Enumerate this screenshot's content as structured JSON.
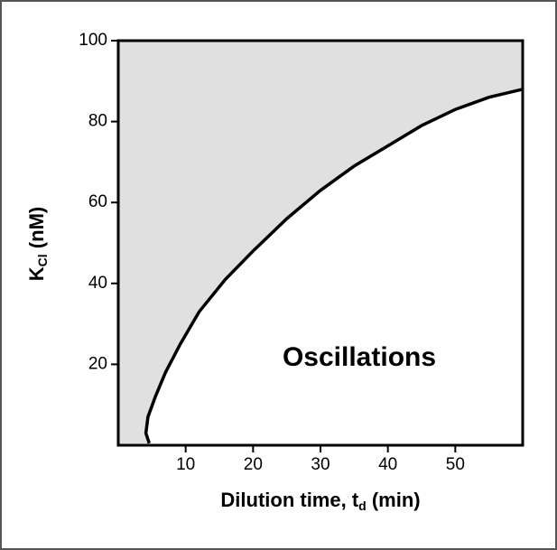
{
  "chart_data": {
    "type": "line",
    "xlabel": {
      "main": "Dilution time, t",
      "sub": "d",
      "tail": " (min)"
    },
    "ylabel": {
      "main": "K",
      "sub": "Cl",
      "tail": " (nM)"
    },
    "annotation": "Oscillations",
    "x": [
      4.6,
      4.1,
      4.4,
      5.5,
      7,
      9.2,
      12,
      15.9,
      20,
      25,
      30,
      35,
      40,
      45,
      50,
      55,
      60
    ],
    "values": [
      0.5,
      3,
      7,
      12,
      18,
      25,
      33,
      41,
      48,
      56,
      63,
      69,
      74,
      79,
      83,
      86,
      88
    ],
    "color": "#000000",
    "fill_above": "#e0e0e0",
    "xlim": [
      0,
      60
    ],
    "ylim": [
      0,
      100
    ],
    "xticks": [
      10,
      20,
      30,
      40,
      50
    ],
    "yticks": [
      20,
      40,
      60,
      80,
      100
    ]
  }
}
